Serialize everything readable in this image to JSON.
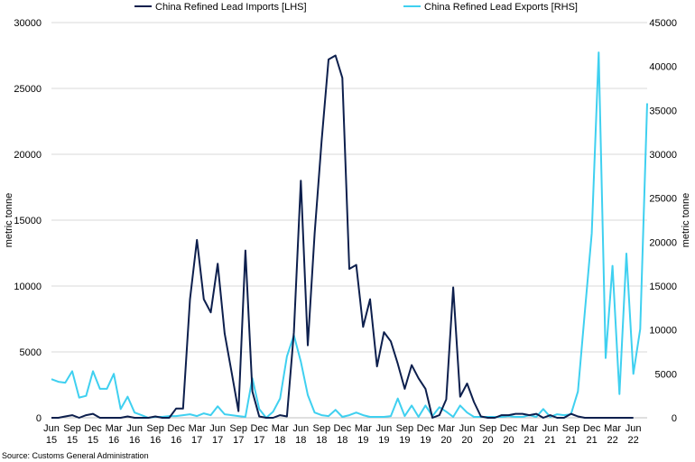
{
  "chart_data": {
    "type": "line",
    "source": "Source: Customs General Administration",
    "legend": [
      "China Refined Lead Imports [LHS]",
      "China Refined Lead Exports [RHS]"
    ],
    "y_left": {
      "label": "metric tonne",
      "min": 0,
      "max": 30000,
      "ticks": [
        "0",
        "5000",
        "10000",
        "15000",
        "20000",
        "25000",
        "30000"
      ]
    },
    "y_right": {
      "label": "metric tonne",
      "min": 0,
      "max": 45000,
      "ticks": [
        "0",
        "5000",
        "10000",
        "15000",
        "20000",
        "25000",
        "30000",
        "35000",
        "40000",
        "45000"
      ]
    },
    "x_tick_labels": [
      [
        "Jun",
        "15"
      ],
      [
        "Sep",
        "15"
      ],
      [
        "Dec",
        "15"
      ],
      [
        "Mar",
        "16"
      ],
      [
        "Jun",
        "16"
      ],
      [
        "Sep",
        "16"
      ],
      [
        "Dec",
        "16"
      ],
      [
        "Mar",
        "17"
      ],
      [
        "Jun",
        "17"
      ],
      [
        "Sep",
        "17"
      ],
      [
        "Dec",
        "17"
      ],
      [
        "Mar",
        "18"
      ],
      [
        "Jun",
        "18"
      ],
      [
        "Sep",
        "18"
      ],
      [
        "Dec",
        "18"
      ],
      [
        "Mar",
        "19"
      ],
      [
        "Jun",
        "19"
      ],
      [
        "Sep",
        "19"
      ],
      [
        "Dec",
        "19"
      ],
      [
        "Mar",
        "20"
      ],
      [
        "Jun",
        "20"
      ],
      [
        "Sep",
        "20"
      ],
      [
        "Dec",
        "20"
      ],
      [
        "Mar",
        "21"
      ],
      [
        "Jun",
        "21"
      ],
      [
        "Sep",
        "21"
      ],
      [
        "Dec",
        "21"
      ],
      [
        "Mar",
        "22"
      ],
      [
        "Jun",
        "22"
      ]
    ],
    "start_month": "Jun 2015",
    "series": [
      {
        "name": "China Refined Lead Imports [LHS]",
        "axis": "left",
        "color": "#0d1f4d",
        "values": [
          0,
          0,
          100,
          200,
          0,
          200,
          300,
          0,
          0,
          0,
          0,
          100,
          0,
          0,
          0,
          100,
          0,
          0,
          700,
          700,
          9000,
          13500,
          9000,
          8000,
          11700,
          6400,
          3500,
          500,
          12700,
          2000,
          100,
          0,
          0,
          200,
          100,
          6500,
          18000,
          5500,
          14000,
          21000,
          27200,
          27500,
          25800,
          11300,
          11600,
          6900,
          9000,
          3900,
          6500,
          5800,
          4100,
          2200,
          4000,
          3000,
          2200,
          0,
          200,
          1400,
          9900,
          1600,
          2600,
          1200,
          100,
          0,
          0,
          200,
          200,
          300,
          300,
          200,
          300,
          0,
          200,
          0,
          0,
          300,
          100,
          0,
          0,
          0,
          0,
          0,
          0,
          0,
          0
        ]
      },
      {
        "name": "China Refined Lead Exports [RHS]",
        "axis": "right",
        "color": "#3fd0f0",
        "values": [
          4400,
          4100,
          4000,
          5300,
          2300,
          2500,
          5300,
          3300,
          3300,
          5000,
          1000,
          2400,
          600,
          300,
          0,
          100,
          100,
          200,
          200,
          300,
          400,
          200,
          500,
          300,
          1300,
          400,
          300,
          200,
          100,
          4500,
          1000,
          0,
          700,
          2200,
          7000,
          9400,
          6400,
          2600,
          600,
          300,
          200,
          900,
          100,
          300,
          600,
          300,
          100,
          100,
          100,
          200,
          2200,
          200,
          1400,
          100,
          1400,
          200,
          1200,
          700,
          100,
          1400,
          600,
          100,
          100,
          100,
          100,
          100,
          200,
          100,
          100,
          300,
          100,
          1000,
          100,
          400,
          300,
          400,
          3000,
          12000,
          21000,
          41600,
          6800,
          17300,
          2700,
          18700,
          5000,
          10100,
          35800
        ]
      }
    ]
  }
}
